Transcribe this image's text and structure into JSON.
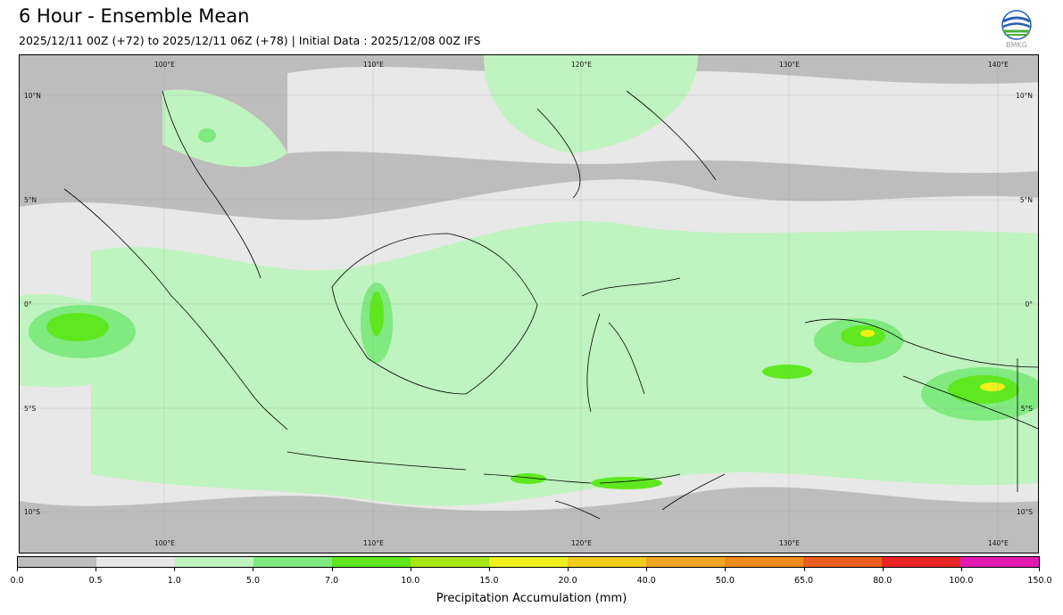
{
  "header": {
    "title": "6 Hour - Ensemble Mean",
    "subtitle": "2025/12/11 00Z (+72) to 2025/12/11 06Z (+78) | Initial Data : 2025/12/08 00Z IFS"
  },
  "logo": {
    "icon": "bmkg-logo-icon",
    "text": "BMKG"
  },
  "map": {
    "longitude_labels": [
      "100°E",
      "110°E",
      "120°E",
      "130°E",
      "140°E"
    ],
    "latitude_labels": [
      "10°N",
      "5°N",
      "0°",
      "5°S",
      "10°S"
    ],
    "background_color": "#bdbdbd"
  },
  "colorbar": {
    "label": "Precipitation Accumulation (mm)",
    "colors": [
      "#bdbdbd",
      "#e8e8e8",
      "#bff3bf",
      "#80e980",
      "#5fe81f",
      "#a6e614",
      "#eef01c",
      "#f2cc1a",
      "#f2a422",
      "#ef8c1e",
      "#ea5f21",
      "#e92525",
      "#e21ab3"
    ],
    "ticks": [
      "0.0",
      "0.5",
      "1.0",
      "5.0",
      "7.0",
      "10.0",
      "15.0",
      "20.0",
      "40.0",
      "50.0",
      "65.0",
      "80.0",
      "100.0",
      "150.0"
    ]
  }
}
